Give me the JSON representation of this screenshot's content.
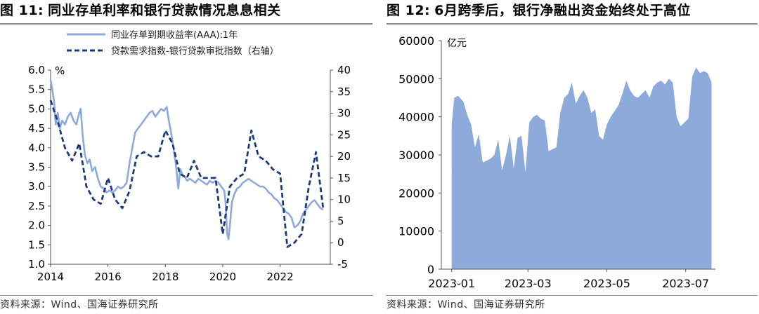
{
  "left": {
    "title_prefix": "图 11:",
    "title_text": "同业存单利率和银行贷款情况息息相关",
    "source": "资料来源：Wind、国海证券研究所",
    "unit_label": "%",
    "legend": [
      "同业存单到期收益率(AAA):1年",
      "贷款需求指数-银行贷款审批指数（右轴）"
    ],
    "colors": {
      "ncd": "#8eaadb",
      "loan": "#1f3a7a"
    }
  },
  "right": {
    "title_prefix": "图 12:",
    "title_text": "6月跨季后，银行净融出资金始终处于高位",
    "source": "资料来源：Wind、国海证券研究所",
    "unit_label": "亿元",
    "colors": {
      "area": "#8eaadb"
    }
  },
  "chart_data": [
    {
      "type": "line",
      "title": "同业存单利率和银行贷款情况息息相关",
      "x_ticks": [
        "2014",
        "2016",
        "2018",
        "2020",
        "2022"
      ],
      "y_left": {
        "ylim": [
          1.0,
          6.0
        ],
        "ticks": [
          "1.0",
          "1.5",
          "2.0",
          "2.5",
          "3.0",
          "3.5",
          "4.0",
          "4.5",
          "5.0",
          "5.5",
          "6.0"
        ],
        "label": "%"
      },
      "y_right": {
        "ylim": [
          -5,
          40
        ],
        "ticks": [
          "-5",
          "0",
          "5",
          "10",
          "15",
          "20",
          "25",
          "30",
          "35",
          "40"
        ]
      },
      "series": [
        {
          "name": "同业存单到期收益率(AAA):1年",
          "axis": "left",
          "x": [
            2014.0,
            2014.05,
            2014.12,
            2014.18,
            2014.25,
            2014.32,
            2014.4,
            2014.5,
            2014.6,
            2014.7,
            2014.8,
            2014.9,
            2015.0,
            2015.05,
            2015.12,
            2015.2,
            2015.28,
            2015.36,
            2015.45,
            2015.55,
            2015.65,
            2015.75,
            2015.85,
            2015.95,
            2016.05,
            2016.15,
            2016.25,
            2016.35,
            2016.45,
            2016.55,
            2016.65,
            2016.75,
            2016.85,
            2016.95,
            2017.05,
            2017.15,
            2017.25,
            2017.35,
            2017.45,
            2017.55,
            2017.65,
            2017.75,
            2017.85,
            2017.95,
            2018.05,
            2018.12,
            2018.2,
            2018.28,
            2018.36,
            2018.45,
            2018.52,
            2018.6,
            2018.68,
            2018.76,
            2018.85,
            2018.95,
            2019.05,
            2019.15,
            2019.25,
            2019.35,
            2019.45,
            2019.55,
            2019.65,
            2019.75,
            2019.85,
            2019.95,
            2020.05,
            2020.1,
            2020.15,
            2020.2,
            2020.25,
            2020.32,
            2020.4,
            2020.5,
            2020.6,
            2020.7,
            2020.8,
            2020.9,
            2021.0,
            2021.1,
            2021.2,
            2021.3,
            2021.4,
            2021.5,
            2021.6,
            2021.7,
            2021.8,
            2021.9,
            2022.0,
            2022.1,
            2022.2,
            2022.3,
            2022.4,
            2022.5,
            2022.6,
            2022.7,
            2022.8,
            2022.9,
            2023.0,
            2023.1,
            2023.2,
            2023.3,
            2023.4,
            2023.5
          ],
          "values": [
            5.75,
            5.55,
            5.2,
            4.6,
            4.9,
            4.5,
            4.7,
            4.6,
            4.8,
            4.9,
            4.7,
            4.6,
            4.9,
            5.0,
            4.3,
            3.8,
            3.6,
            3.7,
            3.4,
            3.5,
            3.2,
            3.0,
            2.95,
            2.85,
            2.9,
            2.85,
            2.9,
            3.0,
            2.95,
            3.0,
            3.1,
            3.6,
            4.0,
            4.4,
            4.5,
            4.6,
            4.7,
            4.8,
            4.9,
            4.95,
            4.8,
            4.9,
            5.0,
            4.95,
            5.05,
            4.7,
            4.4,
            4.0,
            3.6,
            2.95,
            3.45,
            3.3,
            3.25,
            3.15,
            3.2,
            3.15,
            3.1,
            3.2,
            3.15,
            3.1,
            3.05,
            3.15,
            3.1,
            3.15,
            3.1,
            3.0,
            2.9,
            2.6,
            1.8,
            1.65,
            2.0,
            2.6,
            2.8,
            2.95,
            3.0,
            3.1,
            3.15,
            3.2,
            3.15,
            3.1,
            3.05,
            3.0,
            3.0,
            2.95,
            2.85,
            2.8,
            2.7,
            2.65,
            2.55,
            2.45,
            2.35,
            2.3,
            2.2,
            1.95,
            2.0,
            2.1,
            2.3,
            2.4,
            2.5,
            2.6,
            2.65,
            2.55,
            2.45,
            2.4
          ]
        },
        {
          "name": "贷款需求指数-银行贷款审批指数（右轴）",
          "axis": "right",
          "x": [
            2014.0,
            2014.25,
            2014.5,
            2014.75,
            2015.0,
            2015.25,
            2015.5,
            2015.75,
            2016.0,
            2016.25,
            2016.5,
            2016.75,
            2017.0,
            2017.25,
            2017.5,
            2017.75,
            2018.0,
            2018.25,
            2018.5,
            2018.75,
            2019.0,
            2019.25,
            2019.5,
            2019.75,
            2020.0,
            2020.25,
            2020.5,
            2020.75,
            2021.0,
            2021.25,
            2021.5,
            2021.75,
            2022.0,
            2022.25,
            2022.5,
            2022.75,
            2023.0,
            2023.25,
            2023.5
          ],
          "values": [
            33,
            28,
            22,
            19,
            23,
            13,
            10,
            9,
            15,
            10,
            8,
            12,
            20,
            21,
            20,
            20,
            26,
            23,
            16,
            15,
            19,
            15,
            15,
            15,
            2,
            13,
            15,
            16,
            26,
            20,
            19,
            17,
            16,
            -1,
            0,
            2,
            13,
            21,
            8
          ]
        }
      ]
    },
    {
      "type": "area",
      "title": "6月跨季后，银行净融出资金始终处于高位",
      "x_ticks": [
        "2023-01",
        "2023-03",
        "2023-05",
        "2023-07"
      ],
      "ylim": [
        0,
        60000
      ],
      "y_ticks": [
        "0",
        "10000",
        "20000",
        "30000",
        "40000",
        "50000",
        "60000"
      ],
      "ylabel": "亿元",
      "series": [
        {
          "name": "",
          "x": [
            "2023-01-01",
            "2023-01-03",
            "2023-01-06",
            "2023-01-10",
            "2023-01-13",
            "2023-01-16",
            "2023-01-19",
            "2023-01-22",
            "2023-01-25",
            "2023-01-28",
            "2023-01-31",
            "2023-02-03",
            "2023-02-06",
            "2023-02-09",
            "2023-02-12",
            "2023-02-15",
            "2023-02-18",
            "2023-02-21",
            "2023-02-24",
            "2023-02-27",
            "2023-03-02",
            "2023-03-05",
            "2023-03-08",
            "2023-03-11",
            "2023-03-14",
            "2023-03-17",
            "2023-03-20",
            "2023-03-23",
            "2023-03-26",
            "2023-03-29",
            "2023-04-01",
            "2023-04-04",
            "2023-04-07",
            "2023-04-10",
            "2023-04-13",
            "2023-04-16",
            "2023-04-19",
            "2023-04-22",
            "2023-04-25",
            "2023-04-28",
            "2023-05-01",
            "2023-05-04",
            "2023-05-07",
            "2023-05-10",
            "2023-05-13",
            "2023-05-16",
            "2023-05-19",
            "2023-05-22",
            "2023-05-25",
            "2023-05-28",
            "2023-05-31",
            "2023-06-03",
            "2023-06-06",
            "2023-06-09",
            "2023-06-12",
            "2023-06-15",
            "2023-06-18",
            "2023-06-21",
            "2023-06-24",
            "2023-06-27",
            "2023-06-30",
            "2023-07-03",
            "2023-07-06",
            "2023-07-09",
            "2023-07-12",
            "2023-07-15",
            "2023-07-18",
            "2023-07-21"
          ],
          "values": [
            38000,
            45000,
            45500,
            44000,
            40500,
            38000,
            32000,
            35500,
            28000,
            28500,
            29000,
            30000,
            34000,
            26000,
            30000,
            35000,
            26500,
            34500,
            35000,
            25500,
            38500,
            40000,
            40500,
            39500,
            39000,
            31000,
            31500,
            32000,
            41000,
            45000,
            46000,
            49000,
            43500,
            45500,
            47000,
            45000,
            41000,
            42000,
            35000,
            34000,
            38000,
            40000,
            41500,
            43000,
            46000,
            49500,
            47000,
            45500,
            45000,
            46000,
            47000,
            45000,
            48000,
            49000,
            49500,
            48500,
            50000,
            49000,
            40000,
            37500,
            38500,
            39500,
            50500,
            53000,
            51500,
            52000,
            51500,
            49000
          ]
        }
      ]
    }
  ]
}
